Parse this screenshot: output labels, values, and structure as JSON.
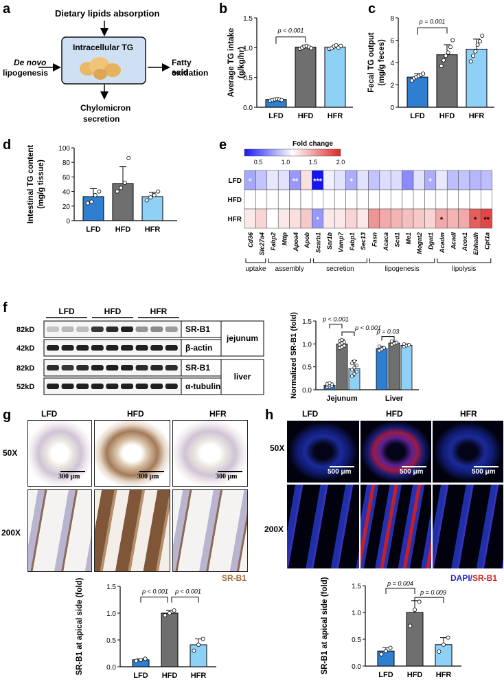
{
  "panel_letters": [
    "a",
    "b",
    "c",
    "d",
    "e",
    "f",
    "g",
    "h"
  ],
  "panel_a": {
    "top": "Dietary lipids absorption",
    "center": "Intracellular TG",
    "left_line1": "De novo",
    "left_line2": "lipogenesis",
    "right_line1": "Fatty acid",
    "right_line2": "oxidation",
    "bottom_line1": "Chylomicron",
    "bottom_line2": "secretion"
  },
  "groups": [
    "LFD",
    "HFD",
    "HFR"
  ],
  "colors": {
    "lfd": "#2f7fd1",
    "hfd": "#6f6f6f",
    "hfr": "#8fd0f6"
  },
  "chart_data": [
    {
      "panel": "b",
      "type": "bar",
      "ylabel_line1": "Average TG intake",
      "ylabel_line2": "(g/kg/hr)",
      "categories": [
        "LFD",
        "HFD",
        "HFR"
      ],
      "values": [
        0.13,
        1.01,
        1.01
      ],
      "errors": [
        0.01,
        0.03,
        0.03
      ],
      "points": [
        [
          0.11,
          0.12,
          0.13,
          0.14,
          0.13,
          0.12
        ],
        [
          0.98,
          1.0,
          1.02,
          1.03,
          1.01,
          0.99
        ],
        [
          0.98,
          0.99,
          1.02,
          1.04,
          1.0,
          1.03
        ]
      ],
      "ylim": [
        0,
        1.5
      ],
      "yticks": [
        "0.0",
        "0.5",
        "1.0",
        "1.5"
      ],
      "annotation": "p < 0.001"
    },
    {
      "panel": "c",
      "type": "bar",
      "ylabel_line1": "Fecal TG output",
      "ylabel_line2": "(mg/g feces)",
      "categories": [
        "LFD",
        "HFD",
        "HFR"
      ],
      "values": [
        2.7,
        4.7,
        5.2
      ],
      "errors": [
        0.3,
        0.9,
        0.9
      ],
      "points": [
        [
          2.4,
          2.6,
          2.7,
          2.8,
          2.9,
          3.0
        ],
        [
          3.7,
          4.2,
          4.6,
          4.9,
          5.4,
          6.0
        ],
        [
          4.1,
          4.6,
          5.0,
          5.6,
          5.9,
          6.4
        ]
      ],
      "ylim": [
        0,
        8
      ],
      "yticks": [
        "0",
        "2",
        "4",
        "6",
        "8"
      ],
      "annotation": "p = 0.001"
    },
    {
      "panel": "d",
      "type": "bar",
      "ylabel_line1": "Intestinal TG content",
      "ylabel_line2": "(mg/g tissue)",
      "categories": [
        "LFD",
        "HFD",
        "HFR"
      ],
      "values": [
        33,
        51,
        33
      ],
      "errors": [
        11,
        23,
        6
      ],
      "points": [
        [
          24,
          26,
          35,
          40
        ],
        [
          40,
          45,
          52,
          86
        ],
        [
          28,
          32,
          35,
          40
        ]
      ],
      "ylim": [
        0,
        100
      ],
      "yticks": [
        "0",
        "20",
        "40",
        "60",
        "80",
        "100"
      ]
    },
    {
      "panel": "f",
      "type": "bar",
      "ylabel": "Normalized SR-B1 (fold)",
      "categories": [
        "Jejunum",
        "Liver"
      ],
      "series": [
        {
          "name": "LFD",
          "values": [
            0.1,
            0.9
          ],
          "errors": [
            0.05,
            0.05
          ]
        },
        {
          "name": "HFD",
          "values": [
            1.0,
            1.02
          ],
          "errors": [
            0.1,
            0.04
          ]
        },
        {
          "name": "HFR",
          "values": [
            0.46,
            0.97
          ],
          "errors": [
            0.18,
            0.03
          ]
        }
      ],
      "ylim": [
        0,
        1.5
      ],
      "yticks": [
        "0.0",
        "0.5",
        "1.0",
        "1.5"
      ],
      "annotations": [
        "p < 0.001",
        "p < 0.001",
        "p = 0.03"
      ]
    },
    {
      "panel": "g",
      "type": "bar",
      "ylabel": "SR-B1 at apical side (fold)",
      "categories": [
        "LFD",
        "HFD",
        "HFR"
      ],
      "values": [
        0.13,
        1.0,
        0.41
      ],
      "errors": [
        0.02,
        0.05,
        0.11
      ],
      "points": [
        [
          0.11,
          0.13,
          0.15
        ],
        [
          0.96,
          1.0,
          1.05
        ],
        [
          0.3,
          0.41,
          0.52
        ]
      ],
      "ylim": [
        0,
        1.5
      ],
      "yticks": [
        "0.0",
        "0.5",
        "1.0",
        "1.5"
      ],
      "annotations": [
        "p < 0.001",
        "p < 0.001"
      ]
    },
    {
      "panel": "h",
      "type": "bar",
      "ylabel": "SR-B1 at apical side (fold)",
      "categories": [
        "LFD",
        "HFD",
        "HFR"
      ],
      "values": [
        0.28,
        1.0,
        0.4
      ],
      "errors": [
        0.06,
        0.22,
        0.13
      ],
      "points": [
        [
          0.22,
          0.28,
          0.34
        ],
        [
          0.75,
          1.05,
          1.2
        ],
        [
          0.27,
          0.4,
          0.53
        ]
      ],
      "ylim": [
        0,
        1.5
      ],
      "yticks": [
        "0.0",
        "0.5",
        "1.0",
        "1.5"
      ],
      "annotations": [
        "p = 0.004",
        "p = 0.009"
      ]
    },
    {
      "panel": "e",
      "type": "heatmap",
      "legend_title": "Fold change",
      "legend_ticks": [
        "0.5",
        "1.0",
        "1.5",
        "2.0"
      ],
      "rows": [
        "LFD",
        "HFD",
        "HFR"
      ],
      "genes": [
        "Cd36",
        "Slc27a4",
        "Fabp2",
        "Mttp",
        "Apoa4",
        "Apob",
        "Scarb1",
        "Sar1b",
        "Vamp7",
        "Fabp1",
        "Sec13",
        "Fasn",
        "Acaca",
        "Scd1",
        "Me1",
        "Mogat2",
        "Dgat1",
        "Acadm",
        "Acadl",
        "Acox1",
        "Ehhadh",
        "Cpt1a"
      ],
      "values": [
        [
          0.7,
          0.8,
          0.92,
          0.9,
          0.65,
          1.15,
          0.2,
          0.95,
          0.9,
          0.72,
          0.9,
          0.8,
          0.88,
          0.88,
          0.6,
          0.9,
          0.72,
          0.92,
          0.78,
          0.8,
          0.75,
          0.78
        ],
        [
          1.0,
          1.0,
          1.0,
          1.0,
          1.0,
          1.0,
          1.0,
          1.0,
          1.0,
          1.0,
          1.0,
          1.0,
          1.0,
          1.0,
          1.0,
          1.0,
          1.0,
          1.0,
          1.0,
          1.0,
          1.0,
          1.0
        ],
        [
          1.1,
          1.2,
          1.0,
          1.1,
          1.15,
          1.25,
          0.65,
          1.1,
          1.1,
          1.2,
          1.1,
          1.5,
          1.4,
          1.35,
          1.3,
          1.25,
          1.2,
          1.4,
          1.35,
          1.4,
          1.75,
          1.85
        ]
      ],
      "stars": [
        [
          "*",
          "",
          "",
          "",
          "**",
          "",
          "***",
          "",
          "",
          "*",
          "",
          "",
          "",
          "",
          "",
          "",
          "*",
          "",
          "",
          "",
          "",
          ""
        ],
        [
          "",
          "",
          "",
          "",
          "",
          "",
          "",
          "",
          "",
          "",
          "",
          "",
          "",
          "",
          "",
          "",
          "",
          "",
          "",
          "",
          "",
          ""
        ],
        [
          "",
          "",
          "",
          "",
          "",
          "",
          "*",
          "",
          "",
          "",
          "",
          "",
          "",
          "",
          "",
          "",
          "",
          "*",
          "",
          "",
          "*",
          "**"
        ]
      ],
      "categories": [
        "uptake",
        "assembly",
        "secretion",
        "lipogenesis",
        "lipolysis"
      ]
    }
  ],
  "panel_f_blot": {
    "groups": [
      "LFD",
      "HFD",
      "HFR"
    ],
    "rows": [
      {
        "size": "82kD",
        "protein": "SR-B1"
      },
      {
        "size": "42kD",
        "protein": "β-actin"
      },
      {
        "size": "82kD",
        "protein": "SR-B1"
      },
      {
        "size": "52kD",
        "protein": "α-tubulin"
      }
    ],
    "tissues": [
      "jejunum",
      "liver"
    ],
    "band_intensity": [
      [
        0.25,
        0.3,
        0.28,
        0.85,
        0.9,
        0.95,
        0.45,
        0.5,
        0.42
      ],
      [
        0.95,
        0.95,
        0.95,
        0.95,
        0.95,
        0.95,
        0.95,
        0.95,
        0.95
      ],
      [
        0.9,
        0.85,
        0.9,
        0.95,
        0.95,
        0.95,
        0.9,
        0.92,
        0.9
      ],
      [
        0.95,
        0.95,
        0.95,
        0.95,
        0.95,
        0.95,
        0.95,
        0.95,
        0.95
      ]
    ]
  },
  "panel_g": {
    "magnifications": [
      "50X",
      "200X"
    ],
    "scalebar": "300 μm",
    "stain_label": "SR-B1"
  },
  "panel_h": {
    "magnifications": [
      "50X",
      "200X"
    ],
    "scalebar": "500 μm",
    "stain_label_1": "DAPI",
    "stain_label_sep": "/",
    "stain_label_2": "SR-B1"
  }
}
